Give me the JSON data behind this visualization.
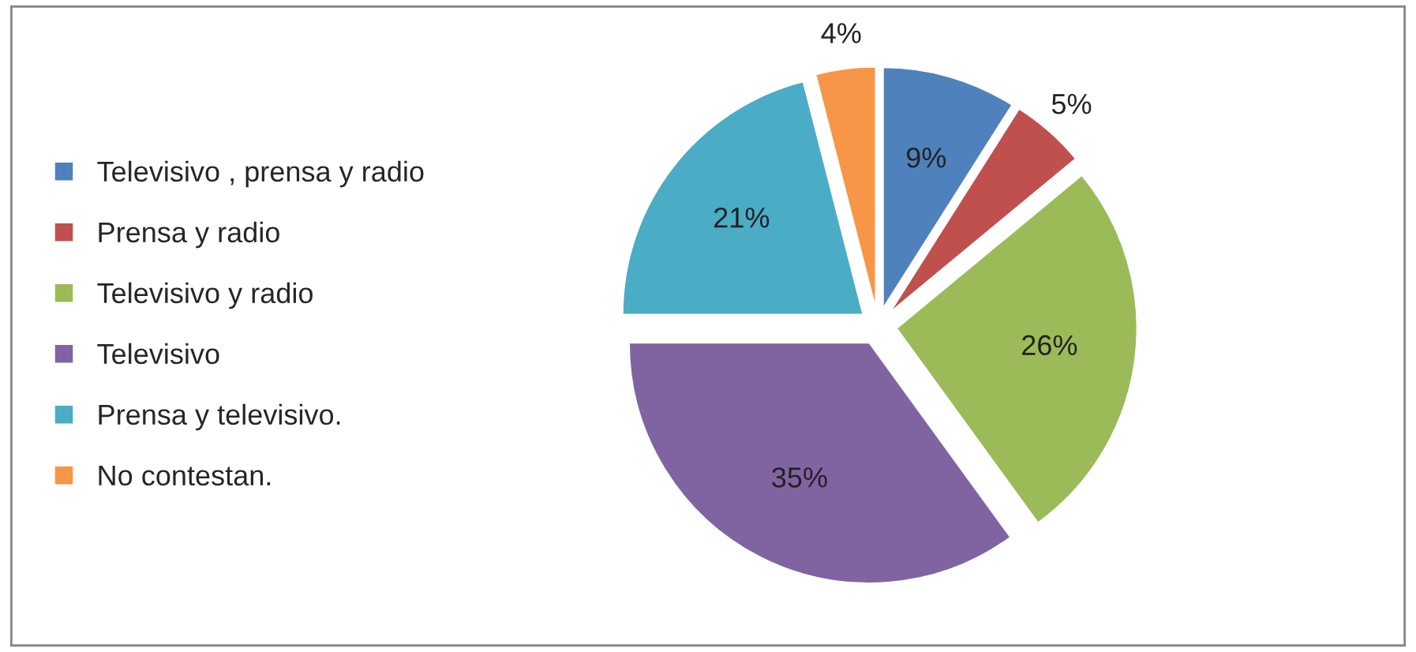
{
  "chart_data": {
    "type": "pie",
    "categories": [
      "Televisivo , prensa y radio",
      "Prensa y radio",
      "Televisivo y radio",
      "Televisivo",
      "Prensa y televisivo.",
      "No contestan."
    ],
    "values": [
      9,
      5,
      26,
      35,
      21,
      4
    ],
    "value_labels": [
      "9%",
      "5%",
      "26%",
      "35%",
      "21%",
      "4%"
    ],
    "colors": [
      "#4f81bd",
      "#c0504d",
      "#9bbb59",
      "#8064a2",
      "#4bacc6",
      "#f79646"
    ],
    "legend": "left"
  }
}
